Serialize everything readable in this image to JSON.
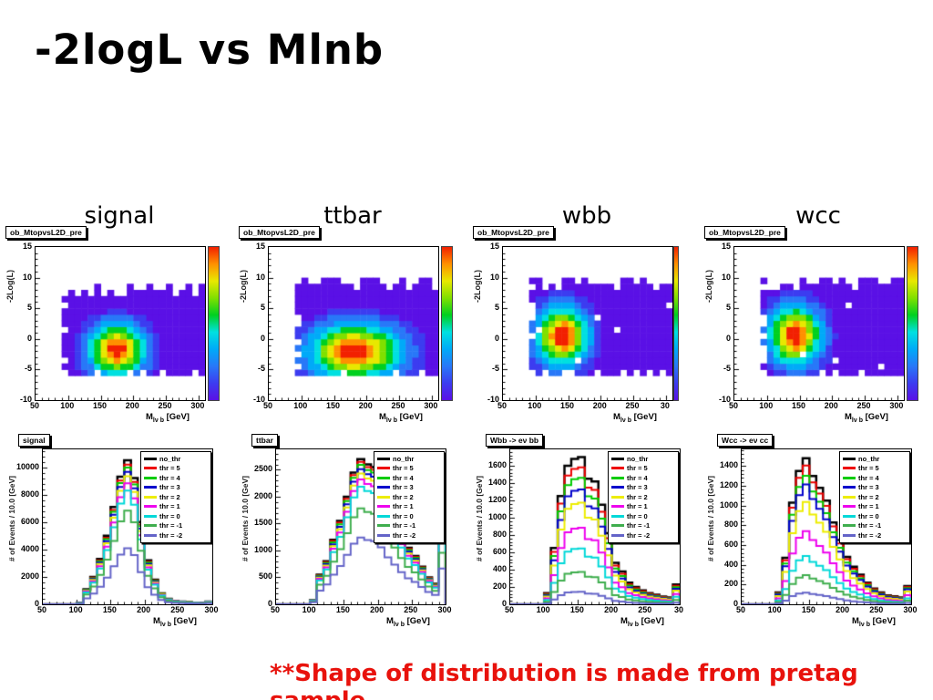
{
  "slide": {
    "title": "-2logL vs Mlnb",
    "caption": "**Shape of distribution is made from pretag sample",
    "caption_color": "#e8120c",
    "background": "#ffffff"
  },
  "columns": [
    "signal",
    "ttbar",
    "wbb",
    "wcc"
  ],
  "axis": {
    "top_ylabel": "-2Log(L)",
    "bottom_ylabel": "# of Events / 10.0 [GeV]",
    "xlabel_prefix": "M",
    "xlabel_sub": "lν b",
    "xlabel_unit": " [GeV]"
  },
  "palette": [
    "#5a10e6",
    "#3c3cf0",
    "#2878f8",
    "#00aaf8",
    "#00e0e0",
    "#00d020",
    "#80e000",
    "#e8e800",
    "#ff9000",
    "#f22000"
  ],
  "legend": [
    {
      "label": "no_thr",
      "color": "#000000"
    },
    {
      "label": "thr = 5",
      "color": "#ee0000"
    },
    {
      "label": "thr = 4",
      "color": "#00cc00"
    },
    {
      "label": "thr = 3",
      "color": "#0000cc"
    },
    {
      "label": "thr = 2",
      "color": "#eded00"
    },
    {
      "label": "thr = 1",
      "color": "#ee00ee"
    },
    {
      "label": "thr = 0",
      "color": "#00d8d8"
    },
    {
      "label": "thr = -1",
      "color": "#3fae4e"
    },
    {
      "label": "thr = -2",
      "color": "#6464c8"
    }
  ],
  "chart_data": [
    {
      "type": "heatmap",
      "panel": "signal",
      "hist_label": "ob_MtopvsL2D_pre",
      "xlabel": "M_lvb [GeV]",
      "ylabel": "-2Log(L)",
      "xlim": [
        50,
        310
      ],
      "ylim": [
        -10,
        15
      ],
      "bin_size": {
        "x": 10,
        "y": 1
      },
      "xticks": [
        "50",
        "100",
        "150",
        "200",
        "250",
        "300"
      ],
      "yticks": [
        "15",
        "10",
        "5",
        "0",
        "-5",
        "-10"
      ],
      "peak": {
        "x": 175,
        "y": -1.7,
        "sigma_x": 27,
        "sigma_y": 2.6,
        "max_level": 9
      },
      "region_x": [
        90,
        310
      ],
      "region_y": [
        -6,
        8
      ],
      "holes": false,
      "colorbar": "wide",
      "seed": 3
    },
    {
      "type": "heatmap",
      "panel": "ttbar",
      "hist_label": "ob_MtopvsL2D_pre",
      "xlabel": "M_lvb [GeV]",
      "ylabel": "-2Log(L)",
      "xlim": [
        50,
        310
      ],
      "ylim": [
        -10,
        15
      ],
      "bin_size": {
        "x": 10,
        "y": 1
      },
      "xticks": [
        "50",
        "100",
        "150",
        "200",
        "250",
        "300"
      ],
      "yticks": [
        "15",
        "10",
        "5",
        "0",
        "-5",
        "-10"
      ],
      "peak": {
        "x": 183,
        "y": -2.0,
        "sigma_x": 44,
        "sigma_y": 2.8,
        "max_level": 9
      },
      "region_x": [
        90,
        310
      ],
      "region_y": [
        -6,
        9
      ],
      "holes": false,
      "colorbar": "wide",
      "seed": 7
    },
    {
      "type": "heatmap",
      "panel": "wbb",
      "hist_label": "ob_MtopvsL2D_pre",
      "xlabel": "M_lvb [GeV]",
      "ylabel": "-2Log(L)",
      "xlim": [
        50,
        310
      ],
      "ylim": [
        -10,
        15
      ],
      "bin_size": {
        "x": 10,
        "y": 1
      },
      "xticks": [
        "50",
        "100",
        "150",
        "200",
        "250",
        "30"
      ],
      "yticks": [
        "15",
        "10",
        "5",
        "0",
        "-5",
        "-10"
      ],
      "peak": {
        "x": 141,
        "y": 0.5,
        "sigma_x": 25,
        "sigma_y": 3.0,
        "max_level": 9
      },
      "region_x": [
        90,
        310
      ],
      "region_y": [
        -6,
        9
      ],
      "holes": true,
      "colorbar": "thin",
      "seed": 11
    },
    {
      "type": "heatmap",
      "panel": "wcc",
      "hist_label": "ob_MtopvsL2D_pre",
      "xlabel": "M_lvb [GeV]",
      "ylabel": "-2Log(L)",
      "xlim": [
        50,
        310
      ],
      "ylim": [
        -10,
        15
      ],
      "bin_size": {
        "x": 10,
        "y": 1
      },
      "xticks": [
        "50",
        "100",
        "150",
        "200",
        "250",
        "300"
      ],
      "yticks": [
        "15",
        "10",
        "5",
        "0",
        "-5",
        "-10"
      ],
      "peak": {
        "x": 143,
        "y": 0.6,
        "sigma_x": 25,
        "sigma_y": 3.0,
        "max_level": 9
      },
      "region_x": [
        90,
        310
      ],
      "region_y": [
        -6,
        9
      ],
      "holes": true,
      "colorbar": "wide",
      "seed": 13
    },
    {
      "type": "histogram-steps",
      "panel": "signal",
      "hist_label": "signal",
      "xlabel": "M_lvb [GeV]",
      "ylabel": "# of Events / 10.0 [GeV]",
      "x_start": 50,
      "bin_width": 10,
      "xlim": [
        50,
        300
      ],
      "ymax": 11300,
      "xticks": [
        "50",
        "100",
        "150",
        "200",
        "250",
        "300"
      ],
      "yticks": [
        "0",
        "2000",
        "4000",
        "6000",
        "8000",
        "10000"
      ],
      "base_counts": [
        0,
        0,
        0,
        0,
        0,
        100,
        1100,
        2000,
        3300,
        5000,
        7100,
        9300,
        10500,
        9200,
        6000,
        3200,
        1800,
        800,
        400,
        250,
        200,
        150,
        120,
        100,
        200
      ],
      "series_scales": [
        1,
        0.97,
        0.95,
        0.92,
        0.89,
        0.84,
        0.79,
        0.65,
        0.39
      ]
    },
    {
      "type": "histogram-steps",
      "panel": "ttbar",
      "hist_label": "ttbar",
      "xlabel": "M_lvb [GeV]",
      "ylabel": "# of Events / 10.0 [GeV]",
      "x_start": 50,
      "bin_width": 10,
      "xlim": [
        50,
        300
      ],
      "ymax": 2880,
      "xticks": [
        "50",
        "100",
        "150",
        "200",
        "250",
        "300"
      ],
      "yticks": [
        "0",
        "500",
        "1000",
        "1500",
        "2000",
        "2500"
      ],
      "base_counts": [
        0,
        0,
        0,
        0,
        0,
        80,
        550,
        800,
        1200,
        1550,
        2000,
        2450,
        2700,
        2600,
        2550,
        2300,
        1900,
        1600,
        1300,
        1050,
        900,
        700,
        500,
        380,
        1450
      ],
      "series_scales": [
        1,
        0.98,
        0.96,
        0.93,
        0.9,
        0.86,
        0.81,
        0.66,
        0.46
      ]
    },
    {
      "type": "histogram-steps",
      "panel": "wbb",
      "hist_label": "Wbb -> eν bb",
      "xlabel": "M_lvb [GeV]",
      "ylabel": "# of Events / 10.0 [GeV]",
      "x_start": 50,
      "bin_width": 10,
      "xlim": [
        50,
        300
      ],
      "ymax": 1790,
      "xticks": [
        "50",
        "100",
        "150",
        "200",
        "250",
        "30"
      ],
      "yticks": [
        "0",
        "200",
        "400",
        "600",
        "800",
        "1000",
        "1200",
        "1400",
        "1600"
      ],
      "base_counts": [
        0,
        0,
        0,
        0,
        0,
        130,
        650,
        1250,
        1600,
        1680,
        1700,
        1450,
        1420,
        1150,
        820,
        480,
        380,
        250,
        200,
        160,
        130,
        110,
        90,
        80,
        230
      ],
      "series_scales": [
        1,
        0.93,
        0.86,
        0.78,
        0.69,
        0.52,
        0.38,
        0.22,
        0.085
      ]
    },
    {
      "type": "histogram-steps",
      "panel": "wcc",
      "hist_label": "Wcc -> eν cc",
      "xlabel": "M_lvb [GeV]",
      "ylabel": "# of Events / 10.0 [GeV]",
      "x_start": 50,
      "bin_width": 10,
      "xlim": [
        50,
        300
      ],
      "ymax": 1570,
      "xticks": [
        "50",
        "100",
        "150",
        "200",
        "250",
        "300"
      ],
      "yticks": [
        "0",
        "200",
        "400",
        "600",
        "800",
        "1000",
        "1200",
        "1400"
      ],
      "base_counts": [
        0,
        0,
        0,
        0,
        0,
        120,
        470,
        1030,
        1350,
        1480,
        1300,
        1180,
        1050,
        830,
        650,
        480,
        380,
        300,
        220,
        160,
        120,
        90,
        80,
        70,
        185
      ],
      "series_scales": [
        1,
        0.95,
        0.88,
        0.82,
        0.7,
        0.5,
        0.33,
        0.2,
        0.08
      ]
    }
  ]
}
